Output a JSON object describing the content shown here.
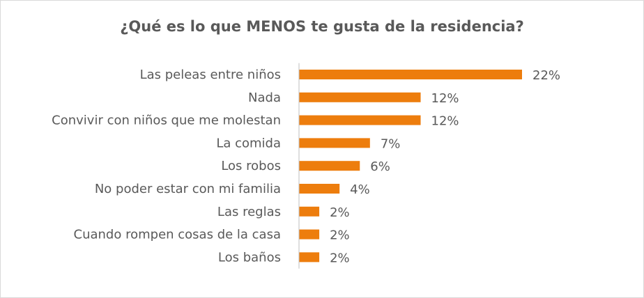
{
  "chart_data": {
    "type": "bar",
    "orientation": "horizontal",
    "title": "¿Qué es lo que MENOS te gusta de la residencia?",
    "categories": [
      "Las peleas entre niños",
      "Nada",
      "Convivir con niños que me molestan",
      "La comida",
      "Los robos",
      "No poder estar con mi familia",
      "Las reglas",
      "Cuando rompen cosas de la casa",
      "Los baños"
    ],
    "values": [
      22,
      12,
      12,
      7,
      6,
      4,
      2,
      2,
      2
    ],
    "value_labels": [
      "22%",
      "12%",
      "12%",
      "7%",
      "6%",
      "4%",
      "2%",
      "2%",
      "2%"
    ],
    "unit": "%",
    "bar_color": "#ED7D0D",
    "text_color": "#595959",
    "axis_color": "#BFBFBF",
    "grid": false,
    "legend": false,
    "xlim": [
      0,
      22
    ]
  }
}
